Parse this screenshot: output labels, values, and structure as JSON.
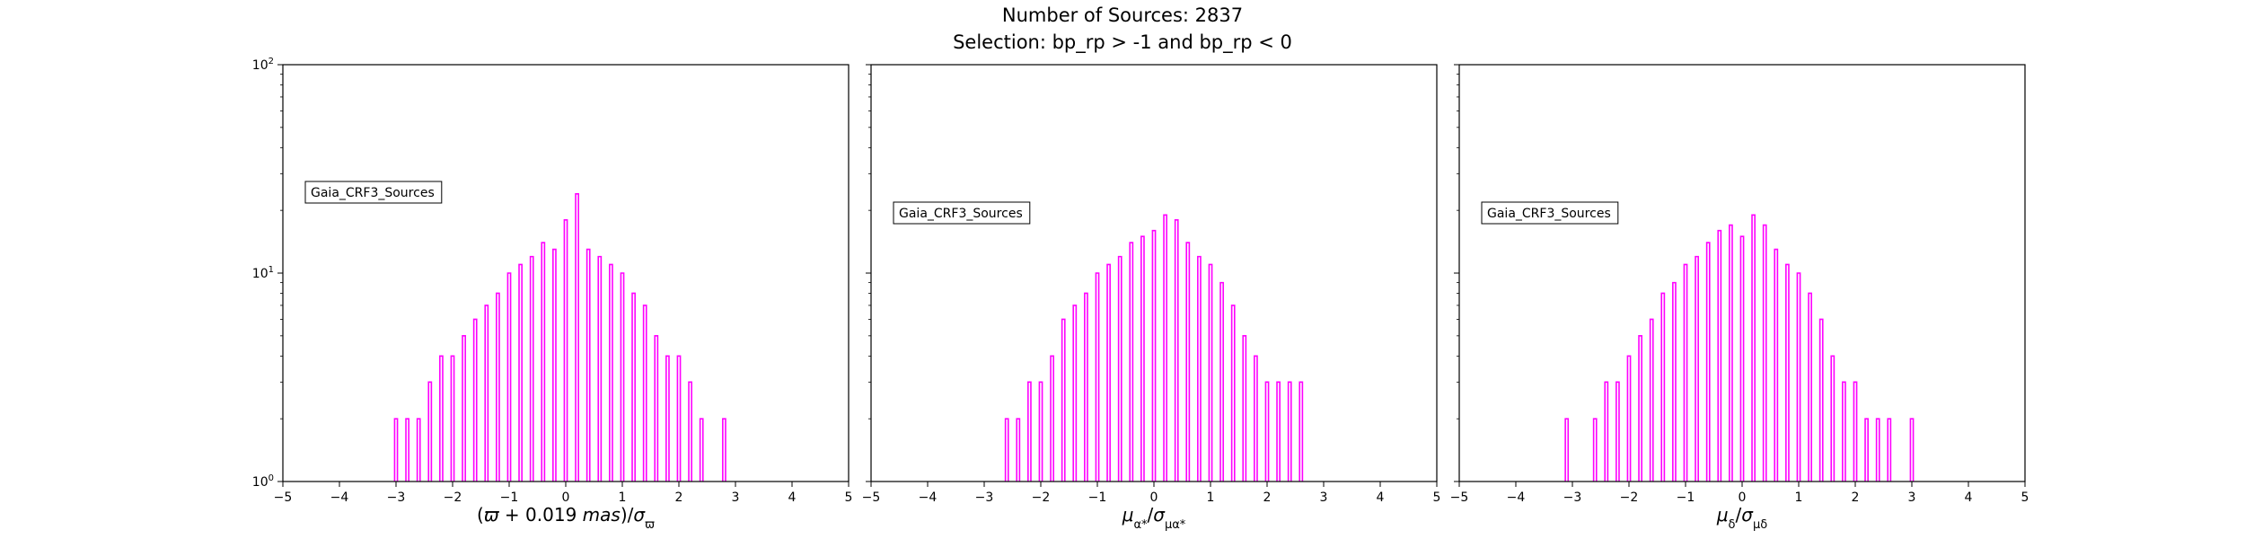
{
  "figure": {
    "title_line1": "Number of Sources: 2837",
    "title_line2": "Selection: bp_rp > -1 and bp_rp < 0"
  },
  "colors": {
    "histogram": "#ff00ff",
    "axes": "#000000",
    "background": "#ffffff"
  },
  "chart_data": [
    {
      "type": "bar",
      "style": "step-histogram",
      "xlabel": "(ϖ + 0.019 mas)/σ_ϖ",
      "ylabel": "",
      "xlim": [
        -5,
        5
      ],
      "ylim": [
        1,
        100
      ],
      "yscale": "log",
      "x_ticks": [
        -5,
        -4,
        -3,
        -2,
        -1,
        0,
        1,
        2,
        3,
        4,
        5
      ],
      "y_ticks": [
        "10^0",
        "10^1",
        "10^2"
      ],
      "legend": {
        "label": "Gaia_CRF3_Sources",
        "placement": "upper-left"
      },
      "series": [
        {
          "color": "#ff00ff",
          "values": [
            {
              "x": -3.0,
              "y": 2
            },
            {
              "x": -2.8,
              "y": 2
            },
            {
              "x": -2.6,
              "y": 2
            },
            {
              "x": -2.4,
              "y": 3
            },
            {
              "x": -2.2,
              "y": 4
            },
            {
              "x": -2.0,
              "y": 4
            },
            {
              "x": -1.8,
              "y": 5
            },
            {
              "x": -1.6,
              "y": 6
            },
            {
              "x": -1.4,
              "y": 7
            },
            {
              "x": -1.2,
              "y": 8
            },
            {
              "x": -1.0,
              "y": 10
            },
            {
              "x": -0.8,
              "y": 11
            },
            {
              "x": -0.6,
              "y": 12
            },
            {
              "x": -0.4,
              "y": 14
            },
            {
              "x": -0.2,
              "y": 13
            },
            {
              "x": 0.0,
              "y": 18
            },
            {
              "x": 0.2,
              "y": 24
            },
            {
              "x": 0.4,
              "y": 13
            },
            {
              "x": 0.6,
              "y": 12
            },
            {
              "x": 0.8,
              "y": 11
            },
            {
              "x": 1.0,
              "y": 10
            },
            {
              "x": 1.2,
              "y": 8
            },
            {
              "x": 1.4,
              "y": 7
            },
            {
              "x": 1.6,
              "y": 5
            },
            {
              "x": 1.8,
              "y": 4
            },
            {
              "x": 2.0,
              "y": 4
            },
            {
              "x": 2.2,
              "y": 3
            },
            {
              "x": 2.4,
              "y": 2
            },
            {
              "x": 2.8,
              "y": 2
            }
          ]
        }
      ]
    },
    {
      "type": "bar",
      "style": "step-histogram",
      "xlabel": "μ_α*/σ_μα*",
      "ylabel": "",
      "xlim": [
        -5,
        5
      ],
      "ylim": [
        1,
        100
      ],
      "yscale": "log",
      "x_ticks": [
        -5,
        -4,
        -3,
        -2,
        -1,
        0,
        1,
        2,
        3,
        4,
        5
      ],
      "y_ticks": [
        "10^0",
        "10^1",
        "10^2"
      ],
      "legend": {
        "label": "Gaia_CRF3_Sources",
        "placement": "upper-left"
      },
      "series": [
        {
          "color": "#ff00ff",
          "values": [
            {
              "x": -2.6,
              "y": 2
            },
            {
              "x": -2.4,
              "y": 2
            },
            {
              "x": -2.2,
              "y": 3
            },
            {
              "x": -2.0,
              "y": 3
            },
            {
              "x": -1.8,
              "y": 4
            },
            {
              "x": -1.6,
              "y": 6
            },
            {
              "x": -1.4,
              "y": 7
            },
            {
              "x": -1.2,
              "y": 8
            },
            {
              "x": -1.0,
              "y": 10
            },
            {
              "x": -0.8,
              "y": 11
            },
            {
              "x": -0.6,
              "y": 12
            },
            {
              "x": -0.4,
              "y": 14
            },
            {
              "x": -0.2,
              "y": 15
            },
            {
              "x": 0.0,
              "y": 16
            },
            {
              "x": 0.2,
              "y": 19
            },
            {
              "x": 0.4,
              "y": 18
            },
            {
              "x": 0.6,
              "y": 14
            },
            {
              "x": 0.8,
              "y": 12
            },
            {
              "x": 1.0,
              "y": 11
            },
            {
              "x": 1.2,
              "y": 9
            },
            {
              "x": 1.4,
              "y": 7
            },
            {
              "x": 1.6,
              "y": 5
            },
            {
              "x": 1.8,
              "y": 4
            },
            {
              "x": 2.0,
              "y": 3
            },
            {
              "x": 2.2,
              "y": 3
            },
            {
              "x": 2.4,
              "y": 3
            },
            {
              "x": 2.6,
              "y": 3
            }
          ]
        }
      ]
    },
    {
      "type": "bar",
      "style": "step-histogram",
      "xlabel": "μ_δ/σ_μδ",
      "ylabel": "",
      "xlim": [
        -5,
        5
      ],
      "ylim": [
        1,
        100
      ],
      "yscale": "log",
      "x_ticks": [
        -5,
        -4,
        -3,
        -2,
        -1,
        0,
        1,
        2,
        3,
        4,
        5
      ],
      "y_ticks": [
        "10^0",
        "10^1",
        "10^2"
      ],
      "legend": {
        "label": "Gaia_CRF3_Sources",
        "placement": "upper-left"
      },
      "series": [
        {
          "color": "#ff00ff",
          "values": [
            {
              "x": -3.1,
              "y": 2
            },
            {
              "x": -2.6,
              "y": 2
            },
            {
              "x": -2.4,
              "y": 3
            },
            {
              "x": -2.2,
              "y": 3
            },
            {
              "x": -2.0,
              "y": 4
            },
            {
              "x": -1.8,
              "y": 5
            },
            {
              "x": -1.6,
              "y": 6
            },
            {
              "x": -1.4,
              "y": 8
            },
            {
              "x": -1.2,
              "y": 9
            },
            {
              "x": -1.0,
              "y": 11
            },
            {
              "x": -0.8,
              "y": 12
            },
            {
              "x": -0.6,
              "y": 14
            },
            {
              "x": -0.4,
              "y": 16
            },
            {
              "x": -0.2,
              "y": 17
            },
            {
              "x": 0.0,
              "y": 15
            },
            {
              "x": 0.2,
              "y": 19
            },
            {
              "x": 0.4,
              "y": 17
            },
            {
              "x": 0.6,
              "y": 13
            },
            {
              "x": 0.8,
              "y": 11
            },
            {
              "x": 1.0,
              "y": 10
            },
            {
              "x": 1.2,
              "y": 8
            },
            {
              "x": 1.4,
              "y": 6
            },
            {
              "x": 1.6,
              "y": 4
            },
            {
              "x": 1.8,
              "y": 3
            },
            {
              "x": 2.0,
              "y": 3
            },
            {
              "x": 2.2,
              "y": 2
            },
            {
              "x": 2.4,
              "y": 2
            },
            {
              "x": 2.6,
              "y": 2
            },
            {
              "x": 3.0,
              "y": 2
            }
          ]
        }
      ]
    }
  ]
}
